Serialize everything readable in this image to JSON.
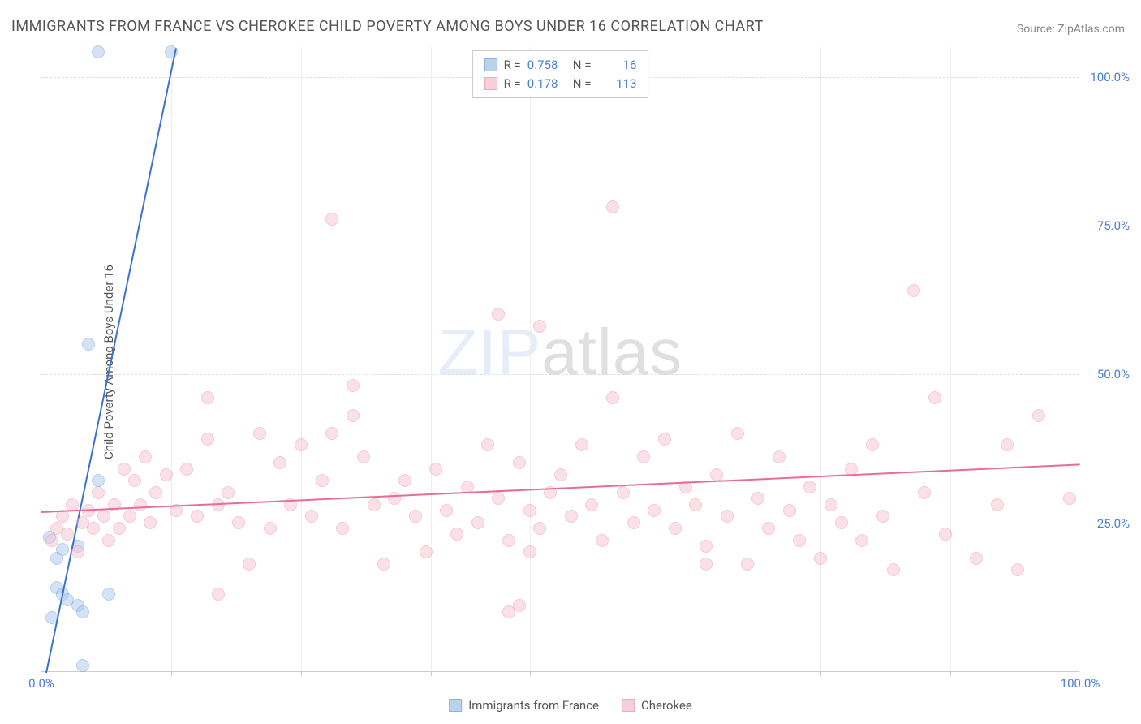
{
  "title": "IMMIGRANTS FROM FRANCE VS CHEROKEE CHILD POVERTY AMONG BOYS UNDER 16 CORRELATION CHART",
  "source_label": "Source: ",
  "source_value": "ZipAtlas.com",
  "ylabel": "Child Poverty Among Boys Under 16",
  "watermark_z": "ZIP",
  "watermark_rest": "atlas",
  "chart": {
    "type": "scatter",
    "background_color": "#ffffff",
    "grid_color": "#dddddd",
    "xlim": [
      0,
      100
    ],
    "ylim": [
      0,
      105
    ],
    "ytick_values": [
      25,
      50,
      75,
      100
    ],
    "ytick_labels": [
      "25.0%",
      "50.0%",
      "75.0%",
      "100.0%"
    ],
    "xtick_values": [
      0,
      100
    ],
    "xtick_labels": [
      "0.0%",
      "100.0%"
    ],
    "xgrid_values": [
      12.5,
      25,
      37.5,
      47,
      62.5,
      75,
      87.5
    ],
    "marker_radius": 8,
    "marker_border_width": 1.5,
    "label_fontsize": 15,
    "tick_color": "#4a80d6"
  },
  "series": [
    {
      "name": "Immigrants from France",
      "fill_color": "#a9c7ec",
      "fill_opacity": 0.5,
      "border_color": "#6f9fe0",
      "line_color": "#3a72d0",
      "R": "0.758",
      "N": "16",
      "trend": {
        "x1": 0.5,
        "y1": 0,
        "x2": 13,
        "y2": 105
      },
      "points": [
        [
          5.5,
          104
        ],
        [
          12.5,
          104
        ],
        [
          4.5,
          55
        ],
        [
          5.5,
          32
        ],
        [
          2,
          20.5
        ],
        [
          3.5,
          21
        ],
        [
          0.8,
          22.5
        ],
        [
          1.5,
          19
        ],
        [
          1.5,
          14
        ],
        [
          2,
          13
        ],
        [
          2.5,
          12
        ],
        [
          3.5,
          11
        ],
        [
          4,
          10
        ],
        [
          6.5,
          13
        ],
        [
          1,
          9
        ],
        [
          4,
          1
        ]
      ]
    },
    {
      "name": "Cherokee",
      "fill_color": "#f7c3d0",
      "fill_opacity": 0.5,
      "border_color": "#ec93ac",
      "line_color": "#e96d92",
      "R": "0.178",
      "N": "113",
      "trend": {
        "x1": 0,
        "y1": 27,
        "x2": 100,
        "y2": 35
      },
      "points": [
        [
          1,
          22
        ],
        [
          1.5,
          24
        ],
        [
          2,
          26
        ],
        [
          2.5,
          23
        ],
        [
          3,
          28
        ],
        [
          3.5,
          20
        ],
        [
          4,
          25
        ],
        [
          4.5,
          27
        ],
        [
          5,
          24
        ],
        [
          5.5,
          30
        ],
        [
          6,
          26
        ],
        [
          6.5,
          22
        ],
        [
          7,
          28
        ],
        [
          7.5,
          24
        ],
        [
          8,
          34
        ],
        [
          8.5,
          26
        ],
        [
          9,
          32
        ],
        [
          9.5,
          28
        ],
        [
          10,
          36
        ],
        [
          10.5,
          25
        ],
        [
          11,
          30
        ],
        [
          12,
          33
        ],
        [
          13,
          27
        ],
        [
          14,
          34
        ],
        [
          15,
          26
        ],
        [
          16,
          39
        ],
        [
          17,
          28
        ],
        [
          16,
          46
        ],
        [
          18,
          30
        ],
        [
          19,
          25
        ],
        [
          17,
          13
        ],
        [
          20,
          18
        ],
        [
          21,
          40
        ],
        [
          22,
          24
        ],
        [
          23,
          35
        ],
        [
          24,
          28
        ],
        [
          25,
          38
        ],
        [
          26,
          26
        ],
        [
          27,
          32
        ],
        [
          28,
          40
        ],
        [
          28,
          76
        ],
        [
          29,
          24
        ],
        [
          30,
          43
        ],
        [
          30,
          48
        ],
        [
          31,
          36
        ],
        [
          32,
          28
        ],
        [
          33,
          18
        ],
        [
          34,
          29
        ],
        [
          35,
          32
        ],
        [
          36,
          26
        ],
        [
          37,
          20
        ],
        [
          38,
          34
        ],
        [
          39,
          27
        ],
        [
          40,
          23
        ],
        [
          41,
          31
        ],
        [
          42,
          25
        ],
        [
          43,
          38
        ],
        [
          44,
          29
        ],
        [
          45,
          22
        ],
        [
          44,
          60
        ],
        [
          46,
          35
        ],
        [
          47,
          27
        ],
        [
          45,
          10
        ],
        [
          46,
          11
        ],
        [
          47,
          20
        ],
        [
          48,
          24
        ],
        [
          49,
          30
        ],
        [
          50,
          33
        ],
        [
          51,
          26
        ],
        [
          52,
          38
        ],
        [
          48,
          58
        ],
        [
          53,
          28
        ],
        [
          54,
          22
        ],
        [
          55,
          46
        ],
        [
          56,
          30
        ],
        [
          57,
          25
        ],
        [
          58,
          36
        ],
        [
          59,
          27
        ],
        [
          55,
          78
        ],
        [
          60,
          39
        ],
        [
          61,
          24
        ],
        [
          62,
          31
        ],
        [
          63,
          28
        ],
        [
          64,
          21
        ],
        [
          64,
          18
        ],
        [
          65,
          33
        ],
        [
          66,
          26
        ],
        [
          67,
          40
        ],
        [
          68,
          18
        ],
        [
          69,
          29
        ],
        [
          70,
          24
        ],
        [
          71,
          36
        ],
        [
          72,
          27
        ],
        [
          73,
          22
        ],
        [
          74,
          31
        ],
        [
          75,
          19
        ],
        [
          76,
          28
        ],
        [
          77,
          25
        ],
        [
          78,
          34
        ],
        [
          79,
          22
        ],
        [
          80,
          38
        ],
        [
          81,
          26
        ],
        [
          82,
          17
        ],
        [
          84,
          64
        ],
        [
          85,
          30
        ],
        [
          86,
          46
        ],
        [
          87,
          23
        ],
        [
          90,
          19
        ],
        [
          92,
          28
        ],
        [
          93,
          38
        ],
        [
          94,
          17
        ],
        [
          96,
          43
        ],
        [
          99,
          29
        ]
      ]
    }
  ],
  "legend_top": {
    "r_label": "R =",
    "n_label": "N ="
  },
  "legend_bottom": {
    "items": [
      "Immigrants from France",
      "Cherokee"
    ]
  }
}
